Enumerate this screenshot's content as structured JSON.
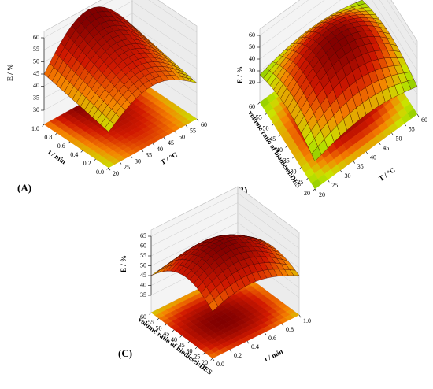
{
  "chart_data": [
    {
      "type": "surface3d",
      "label": "(A)",
      "z_label": "E / %",
      "x_label": "T / °C",
      "y_label": "t / min",
      "xlim": [
        20,
        60
      ],
      "xticks": [
        20,
        25,
        30,
        35,
        40,
        45,
        50,
        55,
        60
      ],
      "ylim": [
        0,
        1
      ],
      "yticks": [
        {
          "value": 0,
          "label": "0.0"
        },
        0.2,
        0.4,
        0.6,
        0.8,
        {
          "value": 1,
          "label": "1.0"
        }
      ],
      "zlim": [
        30,
        60
      ],
      "zticks": [
        30,
        35,
        40,
        45,
        50,
        55,
        60
      ]
    },
    {
      "type": "surface3d",
      "label": "(B)",
      "z_label": "E / %",
      "x_label": "T / °C",
      "y_label": "volume ratio of biodiesel:DES",
      "xlim": [
        20,
        60
      ],
      "xticks": [
        20,
        25,
        30,
        35,
        40,
        45,
        50,
        55,
        60
      ],
      "ylim": [
        20,
        60
      ],
      "yticks": [
        20,
        25,
        30,
        35,
        40,
        45,
        50,
        55,
        60
      ],
      "zlim": [
        20,
        60
      ],
      "zticks": [
        20,
        30,
        40,
        50,
        60
      ]
    },
    {
      "type": "surface3d",
      "label": "(C)",
      "z_label": "E / %",
      "x_label": "t / min",
      "y_label": "volume ratio of biodiesel:DES",
      "xlim": [
        0,
        1
      ],
      "xticks": [
        {
          "value": 0,
          "label": "0.0"
        },
        0.2,
        0.4,
        0.6,
        0.8,
        {
          "value": 1,
          "label": "1.0"
        }
      ],
      "ylim": [
        20,
        60
      ],
      "yticks": [
        20,
        25,
        30,
        35,
        40,
        45,
        50,
        55,
        60
      ],
      "zlim": [
        35,
        65
      ],
      "zticks": [
        35,
        40,
        45,
        50,
        55,
        60,
        65
      ]
    }
  ]
}
